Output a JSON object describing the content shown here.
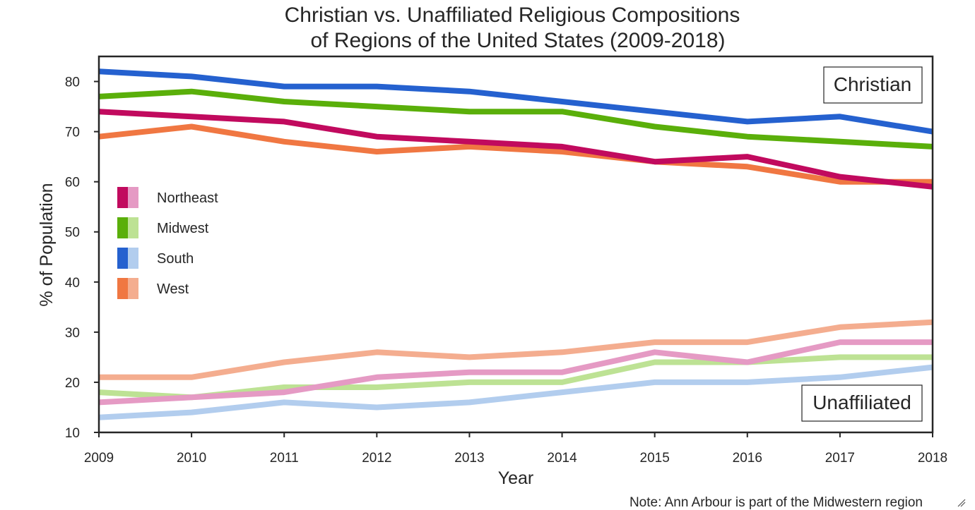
{
  "chart_data": {
    "type": "line",
    "title_lines": [
      "Christian vs. Unaffiliated Religious Compositions",
      "of Regions of the United States (2009-2018)"
    ],
    "xlabel": "Year",
    "ylabel": "% of Population",
    "x": [
      2009,
      2010,
      2011,
      2012,
      2013,
      2014,
      2015,
      2016,
      2017,
      2018
    ],
    "xlim": [
      2009,
      2018
    ],
    "ylim": [
      10,
      85
    ],
    "yticks": [
      10,
      20,
      30,
      40,
      50,
      60,
      70,
      80
    ],
    "grid": false,
    "legend_placement": "center-left",
    "annotations": {
      "christian": "Christian",
      "unaffiliated": "Unaffiliated"
    },
    "note": "Note: Ann Arbour is part of the Midwestern region",
    "regions": [
      {
        "name": "Northeast",
        "dark": "#c10a5e",
        "light": "#e59ac4"
      },
      {
        "name": "Midwest",
        "dark": "#5aaf0a",
        "light": "#bde294"
      },
      {
        "name": "South",
        "dark": "#2561cf",
        "light": "#b2cdee"
      },
      {
        "name": "West",
        "dark": "#f07742",
        "light": "#f4ad8f"
      }
    ],
    "series": [
      {
        "group": "christian",
        "region": 3,
        "values": [
          69,
          71,
          68,
          66,
          67,
          66,
          64,
          63,
          60,
          60
        ]
      },
      {
        "group": "christian",
        "region": 0,
        "values": [
          74,
          73,
          72,
          69,
          68,
          67,
          64,
          65,
          61,
          59
        ]
      },
      {
        "group": "christian",
        "region": 1,
        "values": [
          77,
          78,
          76,
          75,
          74,
          74,
          71,
          69,
          68,
          67
        ]
      },
      {
        "group": "christian",
        "region": 2,
        "values": [
          82,
          81,
          79,
          79,
          78,
          76,
          74,
          72,
          73,
          70
        ]
      },
      {
        "group": "unaffiliated",
        "region": 2,
        "values": [
          13,
          14,
          16,
          15,
          16,
          18,
          20,
          20,
          21,
          23
        ]
      },
      {
        "group": "unaffiliated",
        "region": 1,
        "values": [
          18,
          17,
          19,
          19,
          20,
          20,
          24,
          24,
          25,
          25
        ]
      },
      {
        "group": "unaffiliated",
        "region": 0,
        "values": [
          16,
          17,
          18,
          21,
          22,
          22,
          26,
          24,
          28,
          28
        ]
      },
      {
        "group": "unaffiliated",
        "region": 3,
        "values": [
          21,
          21,
          24,
          26,
          25,
          26,
          28,
          28,
          31,
          32
        ]
      }
    ]
  }
}
